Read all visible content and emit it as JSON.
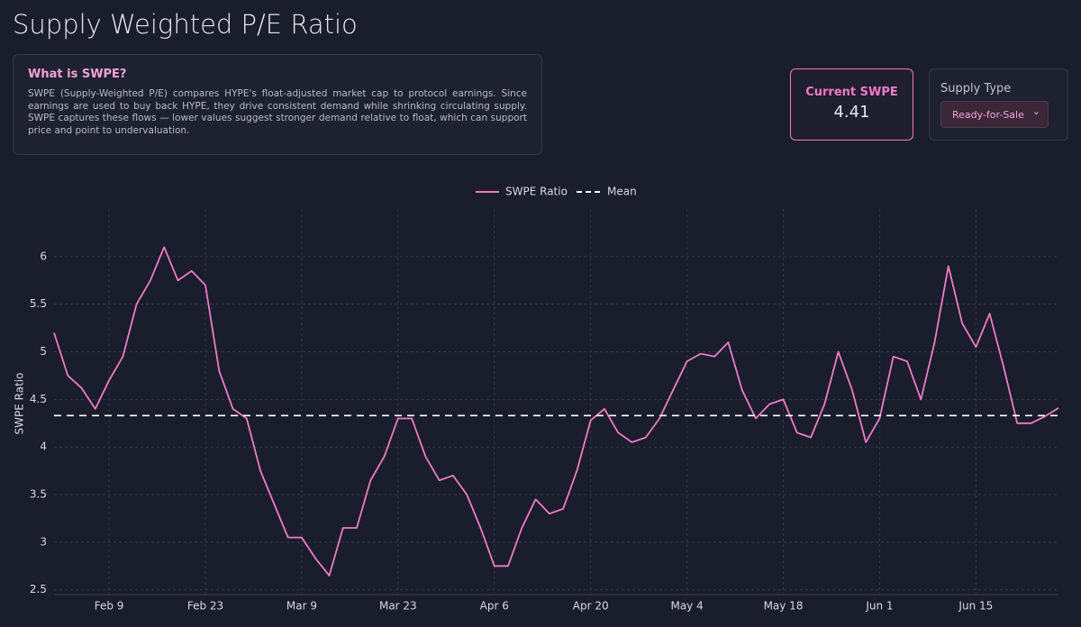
{
  "header": {
    "title": "Supply Weighted P/E Ratio"
  },
  "info": {
    "heading": "What is SWPE?",
    "text": "SWPE (Supply-Weighted P/E) compares HYPE's float-adjusted market cap to protocol earnings. Since earnings are used to buy back HYPE, they drive consistent demand while shrinking circulating supply. SWPE captures these flows — lower values suggest stronger demand relative to float, which can support price and point to undervaluation."
  },
  "metric": {
    "label": "Current SWPE",
    "value": "4.41"
  },
  "select": {
    "label": "Supply Type",
    "value": "Ready-for-Sale"
  },
  "chart_data": {
    "type": "line",
    "x": [
      "Feb 1",
      "Feb 3",
      "Feb 5",
      "Feb 7",
      "Feb 9",
      "Feb 11",
      "Feb 13",
      "Feb 15",
      "Feb 17",
      "Feb 19",
      "Feb 21",
      "Feb 23",
      "Feb 25",
      "Feb 27",
      "Mar 1",
      "Mar 3",
      "Mar 5",
      "Mar 7",
      "Mar 9",
      "Mar 11",
      "Mar 13",
      "Mar 15",
      "Mar 17",
      "Mar 19",
      "Mar 21",
      "Mar 23",
      "Mar 25",
      "Mar 27",
      "Mar 29",
      "Mar 31",
      "Apr 2",
      "Apr 4",
      "Apr 6",
      "Apr 8",
      "Apr 10",
      "Apr 12",
      "Apr 14",
      "Apr 16",
      "Apr 18",
      "Apr 20",
      "Apr 22",
      "Apr 24",
      "Apr 26",
      "Apr 28",
      "Apr 30",
      "May 2",
      "May 4",
      "May 6",
      "May 8",
      "May 10",
      "May 12",
      "May 14",
      "May 16",
      "May 18",
      "May 20",
      "May 22",
      "May 24",
      "May 26",
      "May 28",
      "May 30",
      "Jun 1",
      "Jun 3",
      "Jun 5",
      "Jun 7",
      "Jun 9",
      "Jun 11",
      "Jun 13",
      "Jun 15",
      "Jun 17",
      "Jun 19",
      "Jun 21",
      "Jun 23",
      "Jun 25",
      "Jun 27"
    ],
    "series": [
      {
        "name": "SWPE Ratio",
        "color": "#f07ac8",
        "values": [
          5.2,
          4.75,
          4.62,
          4.4,
          4.7,
          4.95,
          5.5,
          5.75,
          6.1,
          5.75,
          5.85,
          5.7,
          4.8,
          4.4,
          4.3,
          3.75,
          3.4,
          3.05,
          3.05,
          2.83,
          2.65,
          3.15,
          3.15,
          3.65,
          3.9,
          4.3,
          4.3,
          3.9,
          3.65,
          3.7,
          3.5,
          3.15,
          2.75,
          2.75,
          3.15,
          3.45,
          3.3,
          3.35,
          3.75,
          4.28,
          4.4,
          4.15,
          4.05,
          4.1,
          4.3,
          4.6,
          4.9,
          4.98,
          4.95,
          5.1,
          4.6,
          4.3,
          4.45,
          4.5,
          4.15,
          4.1,
          4.45,
          5.0,
          4.6,
          4.05,
          4.3,
          4.95,
          4.9,
          4.5,
          5.1,
          5.9,
          5.3,
          5.05,
          5.4,
          4.85,
          4.25,
          4.25,
          4.32,
          4.41
        ]
      }
    ],
    "mean_line": {
      "name": "Mean",
      "value": 4.33,
      "color": "#ffffff"
    },
    "xticks": [
      "Feb 9",
      "Feb 23",
      "Mar 9",
      "Mar 23",
      "Apr 6",
      "Apr 20",
      "May 4",
      "May 18",
      "Jun 1",
      "Jun 15"
    ],
    "ylabel": "SWPE Ratio",
    "ylim": [
      2.45,
      6.5
    ],
    "yticks": [
      2.5,
      3,
      3.5,
      4,
      4.5,
      5,
      5.5,
      6
    ],
    "grid": true
  }
}
